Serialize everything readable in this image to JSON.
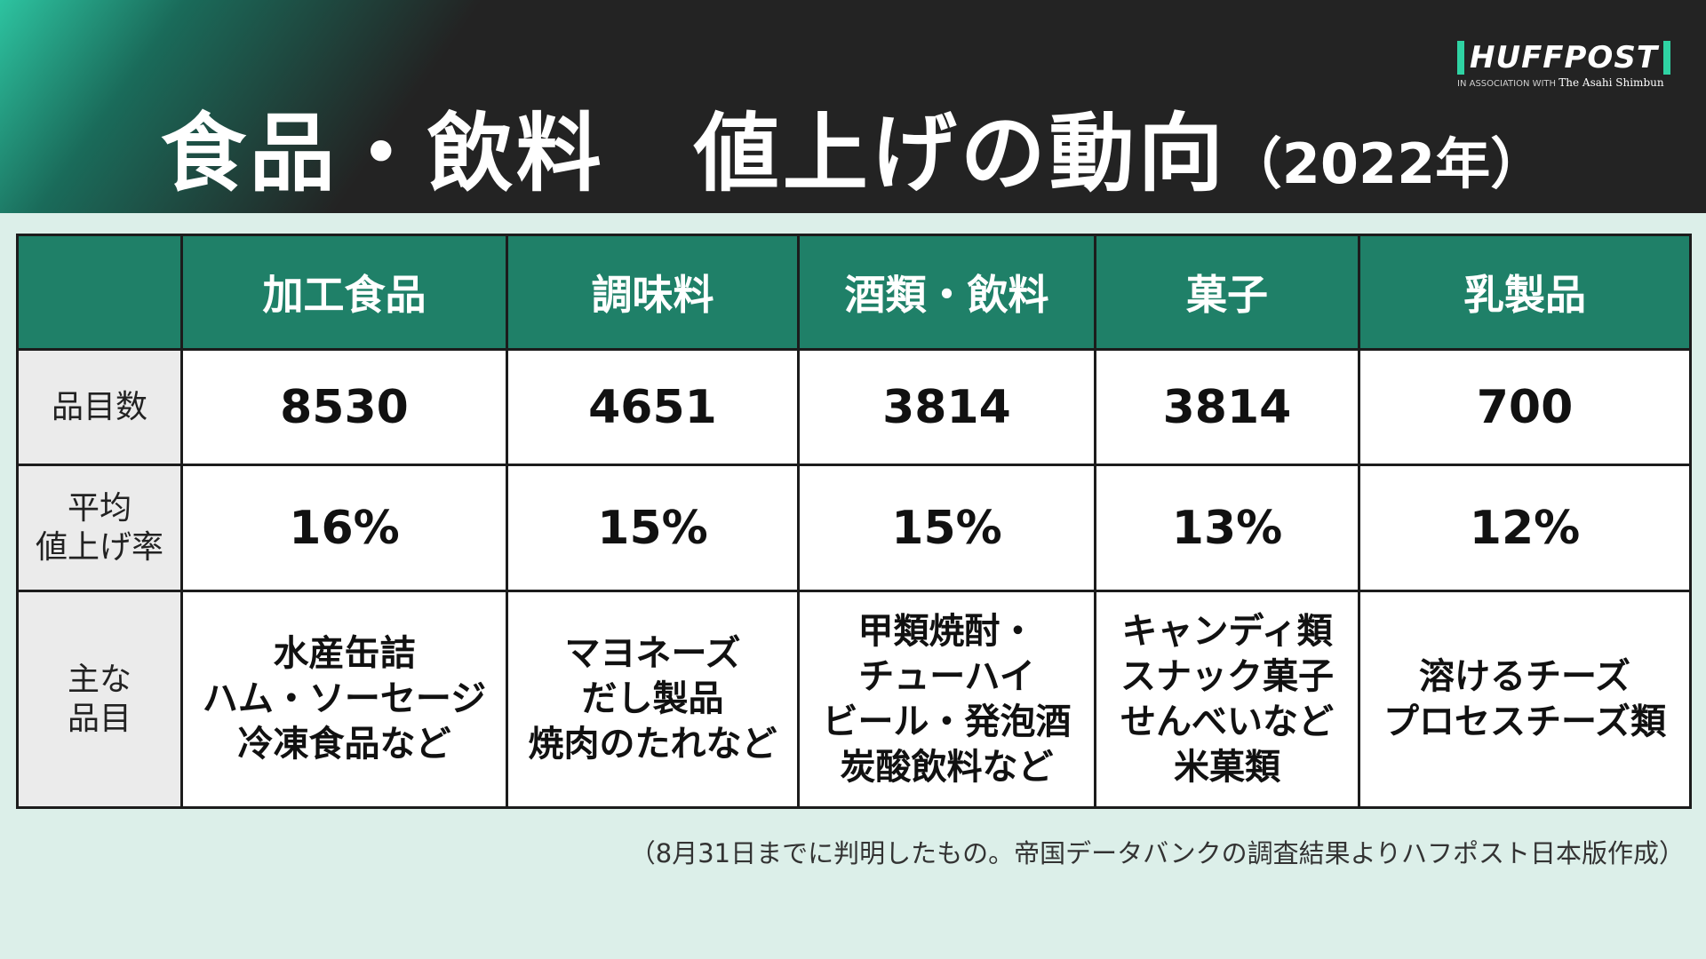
{
  "header": {
    "title": "食品・飲料　値上げの動向",
    "title_year": "（2022年）",
    "logo_text": "HUFFPOST",
    "logo_sub_prefix": "IN ASSOCIATION WITH",
    "logo_sub_name": "The Asahi Shimbun"
  },
  "table": {
    "corner": "",
    "columns": [
      "加工食品",
      "調味料",
      "酒類・飲料",
      "菓子",
      "乳製品"
    ],
    "rows": [
      {
        "label": "品目数",
        "cells": [
          "8530",
          "4651",
          "3814",
          "3814",
          "700"
        ]
      },
      {
        "label": "平均\n値上げ率",
        "cells": [
          "16%",
          "15%",
          "15%",
          "13%",
          "12%"
        ]
      },
      {
        "label": "主な\n品目",
        "cells": [
          "水産缶詰\nハム・ソーセージ\n冷凍食品など",
          "マヨネーズ\nだし製品\n焼肉のたれなど",
          "甲類焼酎・\nチューハイ\nビール・発泡酒\n炭酸飲料など",
          "キャンディ類\nスナック菓子\nせんべいなど\n米菓類",
          "溶けるチーズ\nプロセスチーズ類"
        ]
      }
    ]
  },
  "footnote": "（8月31日までに判明したもの。帝国データバンクの調査結果よりハフポスト日本版作成）",
  "colors": {
    "header_bg": "#232323",
    "accent": "#1f8068",
    "page_bg": "#dcefe9"
  }
}
